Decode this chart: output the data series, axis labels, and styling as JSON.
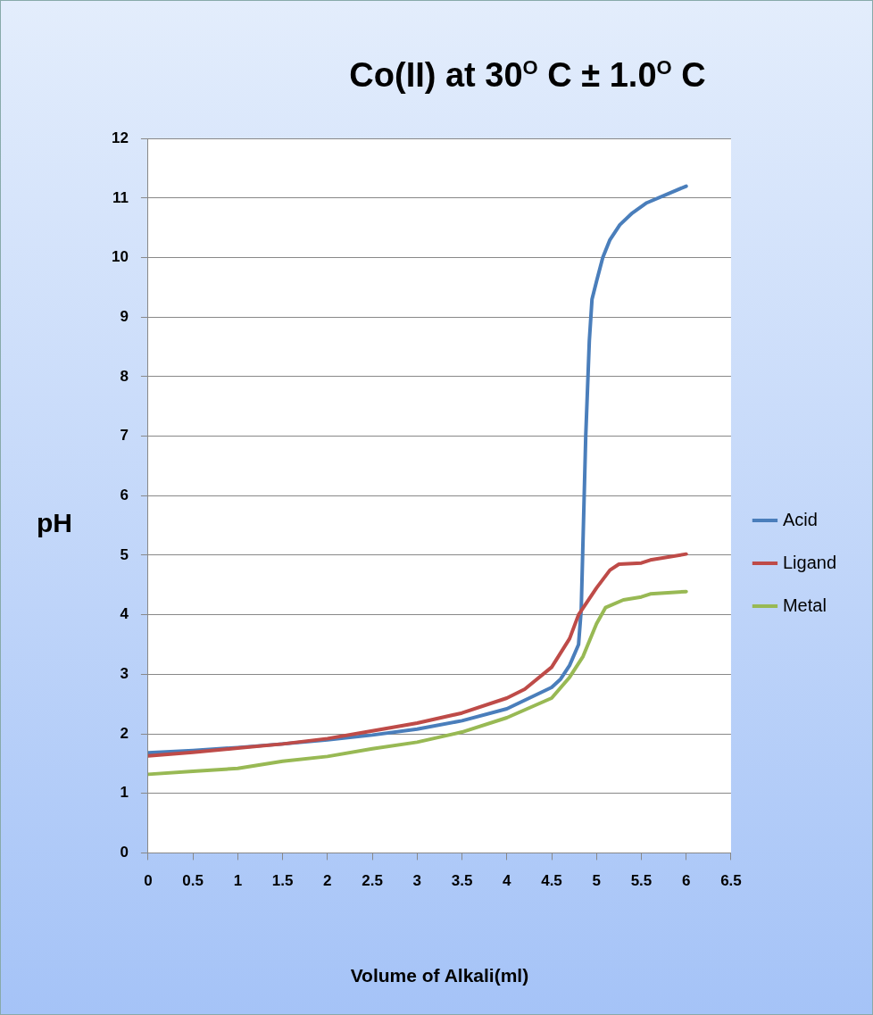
{
  "chart_data": {
    "type": "line",
    "title": "Co(II) at 30$^{O}$  C ± 1.0$^{O}$ C",
    "xlabel": "Volume of Alkali(ml)",
    "ylabel": "pH",
    "xlim": [
      0,
      6.5
    ],
    "xticks": [
      0,
      0.5,
      1,
      1.5,
      2,
      2.5,
      3,
      3.5,
      4,
      4.5,
      5,
      5.5,
      6,
      6.5
    ],
    "ylim": [
      0,
      12
    ],
    "yticks": [
      0,
      1,
      2,
      3,
      4,
      5,
      6,
      7,
      8,
      9,
      10,
      11,
      12
    ],
    "grid": "y",
    "legend": "right",
    "marker": "none",
    "line_style": "solid",
    "series": [
      {
        "name": "Acid",
        "color": "#4a7ebb",
        "x": [
          0,
          0.5,
          1,
          1.5,
          2,
          2.5,
          3,
          3.5,
          4,
          4.5,
          4.6,
          4.7,
          4.8,
          4.83,
          4.88,
          4.92,
          4.95,
          5.0,
          5.07,
          5.15,
          5.26,
          5.4,
          5.56,
          6
        ],
        "values": [
          1.68,
          1.72,
          1.77,
          1.83,
          1.9,
          1.98,
          2.08,
          2.22,
          2.42,
          2.78,
          2.92,
          3.15,
          3.5,
          4.1,
          7.0,
          8.6,
          9.3,
          9.6,
          10.0,
          10.3,
          10.55,
          10.75,
          10.92,
          11.2
        ]
      },
      {
        "name": "Ligand",
        "color": "#be4b48",
        "x": [
          0,
          0.5,
          1,
          1.5,
          2,
          2.5,
          3,
          3.5,
          4,
          4.2,
          4.5,
          4.7,
          4.8,
          5.0,
          5.15,
          5.25,
          5.5,
          5.6,
          6
        ],
        "values": [
          1.63,
          1.69,
          1.76,
          1.83,
          1.92,
          2.05,
          2.18,
          2.35,
          2.6,
          2.75,
          3.12,
          3.6,
          4.0,
          4.45,
          4.75,
          4.85,
          4.87,
          4.92,
          5.02
        ]
      },
      {
        "name": "Metal",
        "color": "#98b954",
        "x": [
          0,
          0.5,
          1,
          1.5,
          2,
          2.5,
          3,
          3.5,
          4,
          4.5,
          4.7,
          4.85,
          5.0,
          5.1,
          5.3,
          5.5,
          5.6,
          6
        ],
        "values": [
          1.32,
          1.37,
          1.42,
          1.54,
          1.62,
          1.75,
          1.86,
          2.03,
          2.27,
          2.6,
          2.95,
          3.3,
          3.85,
          4.12,
          4.25,
          4.3,
          4.35,
          4.39
        ]
      }
    ]
  }
}
